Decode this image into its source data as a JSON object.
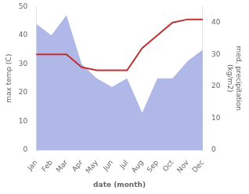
{
  "chart_data": {
    "type": "line",
    "xlabel": "date (month)",
    "ylabel": "max temp (C)",
    "y2label": "med. precipitation\n(kg/m2)",
    "categories": [
      "Jan",
      "Feb",
      "Mar",
      "Apr",
      "May",
      "Jun",
      "Jul",
      "Aug",
      "Sep",
      "Oct",
      "Nov",
      "Dec"
    ],
    "series": [
      {
        "type": "area",
        "color": "#b0b8e8",
        "values": [
          44,
          40,
          47,
          30,
          25,
          22,
          25,
          13,
          25,
          25,
          31,
          35
        ]
      },
      {
        "type": "line",
        "color": "#c03030",
        "axis": "y2",
        "values": [
          30,
          30,
          30,
          26,
          25,
          25,
          25,
          32,
          36,
          40,
          41,
          41
        ]
      }
    ],
    "ylim": [
      0,
      50
    ],
    "yticks": [
      0,
      10,
      20,
      30,
      40,
      50
    ],
    "y2lim": [
      0,
      45
    ],
    "y2ticks": [
      0,
      10,
      20,
      30,
      40
    ],
    "grid": false
  }
}
